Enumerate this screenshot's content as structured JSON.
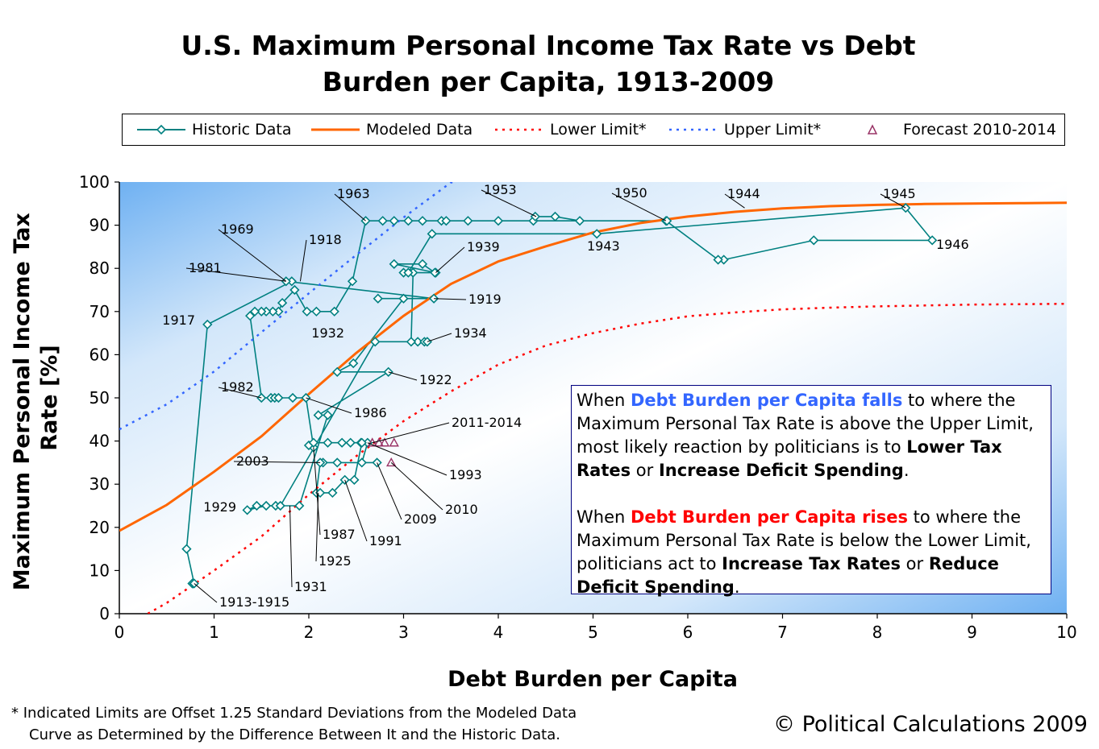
{
  "title_line1": "U.S. Maximum Personal Income Tax Rate vs Debt",
  "title_line2": "Burden per Capita, 1913-2009",
  "legend": {
    "historic": "Historic Data",
    "modeled": "Modeled Data",
    "lower": "Lower Limit*",
    "upper": "Upper Limit*",
    "forecast": "Forecast 2010-2014"
  },
  "colors": {
    "historic": "#008080",
    "modeled": "#ff6600",
    "lower": "#ff0000",
    "upper": "#3366ff",
    "forecast": "#993366"
  },
  "annotation": {
    "p1_a": "When ",
    "p1_b": "Debt Burden per Capita falls",
    "p1_c": " to where the Maximum Personal Tax Rate is above the Upper Limit, most likely reaction by politicians is to ",
    "p1_d": "Lower Tax Rates",
    "p1_e": " or ",
    "p1_f": "Increase Deficit Spending",
    "p1_g": ".",
    "p2_a": "When ",
    "p2_b": "Debt Burden per Capita rises",
    "p2_c": " to where the Maximum Personal Tax Rate is below the Lower Limit, politicians act to ",
    "p2_d": "Increase Tax Rates",
    "p2_e": " or ",
    "p2_f": "Reduce Deficit Spending",
    "p2_g": "."
  },
  "footnote_line1": "* Indicated Limits are Offset 1.25 Standard Deviations from the Modeled Data",
  "footnote_line2": "Curve as Determined by the Difference Between It and the Historic Data.",
  "copyright": "© Political Calculations 2009",
  "chart_data": {
    "type": "line",
    "title": "U.S. Maximum Personal Income Tax Rate vs Debt Burden per Capita, 1913-2009",
    "xlabel": "Debt Burden per Capita",
    "ylabel": "Maximum Personal Income Tax Rate [%]",
    "xlim": [
      0,
      10
    ],
    "ylim": [
      0,
      100
    ],
    "xticks": [
      "0",
      "1",
      "2",
      "3",
      "4",
      "5",
      "6",
      "7",
      "8",
      "9",
      "10"
    ],
    "yticks": [
      "0",
      "10",
      "20",
      "30",
      "40",
      "50",
      "60",
      "70",
      "80",
      "90",
      "100"
    ],
    "legend_position": "top",
    "series": [
      {
        "name": "Historic Data",
        "style": "line-diamond",
        "points": [
          [
            0.78,
            7
          ],
          [
            0.77,
            7
          ],
          [
            0.79,
            7
          ],
          [
            0.71,
            15
          ],
          [
            0.93,
            67
          ],
          [
            1.82,
            77
          ],
          [
            1.76,
            77
          ],
          [
            3.32,
            73
          ],
          [
            2.73,
            73
          ],
          [
            3.0,
            73
          ],
          [
            2.47,
            58
          ],
          [
            2.3,
            56
          ],
          [
            2.84,
            56
          ],
          [
            2.1,
            46
          ],
          [
            2.2,
            46
          ],
          [
            1.9,
            25
          ],
          [
            1.65,
            25
          ],
          [
            1.55,
            25
          ],
          [
            1.35,
            24
          ],
          [
            1.45,
            25
          ],
          [
            1.7,
            25
          ],
          [
            2.7,
            63
          ],
          [
            3.15,
            63
          ],
          [
            3.22,
            63
          ],
          [
            3.25,
            63
          ],
          [
            3.08,
            63
          ],
          [
            3.1,
            79
          ],
          [
            3.0,
            79
          ],
          [
            3.34,
            79
          ],
          [
            2.9,
            81
          ],
          [
            3.2,
            81
          ],
          [
            3.33,
            79
          ],
          [
            3.05,
            79
          ],
          [
            3.3,
            88
          ],
          [
            5.04,
            88
          ],
          [
            8.3,
            94
          ],
          [
            8.58,
            86.5
          ],
          [
            7.33,
            86.5
          ],
          [
            6.38,
            82
          ],
          [
            6.32,
            82
          ],
          [
            5.77,
            91
          ],
          [
            5.78,
            91
          ],
          [
            4.37,
            91
          ],
          [
            4.39,
            92
          ],
          [
            4.6,
            92
          ],
          [
            4.86,
            91
          ],
          [
            4.0,
            91
          ],
          [
            3.68,
            91
          ],
          [
            3.4,
            91
          ],
          [
            3.45,
            91
          ],
          [
            3.2,
            91
          ],
          [
            3.05,
            91
          ],
          [
            2.9,
            91
          ],
          [
            2.78,
            91
          ],
          [
            2.6,
            91
          ],
          [
            2.46,
            77
          ],
          [
            2.27,
            70
          ],
          [
            2.08,
            70
          ],
          [
            1.98,
            70
          ],
          [
            1.85,
            75
          ],
          [
            1.72,
            72
          ],
          [
            1.68,
            70
          ],
          [
            1.62,
            70
          ],
          [
            1.55,
            70
          ],
          [
            1.5,
            70
          ],
          [
            1.43,
            70
          ],
          [
            1.38,
            69
          ],
          [
            1.5,
            50
          ],
          [
            1.6,
            50
          ],
          [
            1.64,
            50
          ],
          [
            1.68,
            50
          ],
          [
            1.83,
            50
          ],
          [
            1.97,
            50
          ],
          [
            2.05,
            38.5
          ],
          [
            2.0,
            39
          ],
          [
            2.05,
            39.6
          ],
          [
            2.2,
            39.6
          ],
          [
            2.35,
            39.6
          ],
          [
            2.44,
            39.6
          ],
          [
            2.55,
            39.6
          ],
          [
            2.62,
            39.6
          ],
          [
            2.56,
            35
          ],
          [
            2.72,
            35
          ],
          [
            2.3,
            35
          ],
          [
            2.15,
            35
          ],
          [
            2.12,
            35
          ],
          [
            2.08,
            28
          ],
          [
            2.12,
            28
          ],
          [
            2.25,
            28
          ],
          [
            2.38,
            31
          ],
          [
            2.48,
            31
          ],
          [
            2.56,
            39.6
          ]
        ]
      },
      {
        "name": "Modeled Data",
        "style": "line",
        "points": [
          [
            0,
            19.2
          ],
          [
            0.5,
            25.2
          ],
          [
            1,
            32.9
          ],
          [
            1.5,
            41.1
          ],
          [
            2,
            50.9
          ],
          [
            2.5,
            60.4
          ],
          [
            3,
            69.0
          ],
          [
            3.5,
            76.4
          ],
          [
            4,
            81.6
          ],
          [
            4.5,
            85.1
          ],
          [
            5,
            88.3
          ],
          [
            5.5,
            90.5
          ],
          [
            6,
            92.0
          ],
          [
            6.5,
            93.1
          ],
          [
            7,
            93.9
          ],
          [
            7.5,
            94.4
          ],
          [
            8,
            94.7
          ],
          [
            8.5,
            94.9
          ],
          [
            9,
            95.0
          ],
          [
            9.5,
            95.1
          ],
          [
            10,
            95.2
          ]
        ]
      },
      {
        "name": "Lower Limit*",
        "style": "dotted",
        "points": [
          [
            0.3,
            0
          ],
          [
            0.5,
            2.5
          ],
          [
            1,
            10.0
          ],
          [
            1.5,
            17.9
          ],
          [
            2,
            27.6
          ],
          [
            2.5,
            36.5
          ],
          [
            3,
            44.6
          ],
          [
            3.5,
            51.5
          ],
          [
            4,
            57.7
          ],
          [
            4.5,
            62.1
          ],
          [
            5,
            65.0
          ],
          [
            5.5,
            67.2
          ],
          [
            6,
            68.9
          ],
          [
            6.5,
            69.8
          ],
          [
            7,
            70.5
          ],
          [
            7.5,
            70.9
          ],
          [
            8,
            71.2
          ],
          [
            8.5,
            71.4
          ],
          [
            9,
            71.6
          ],
          [
            9.5,
            71.7
          ],
          [
            10,
            71.8
          ]
        ]
      },
      {
        "name": "Upper Limit*",
        "style": "dotted",
        "points": [
          [
            0,
            42.7
          ],
          [
            0.5,
            48.5
          ],
          [
            1,
            56.1
          ],
          [
            1.5,
            65.2
          ],
          [
            2,
            74.2
          ],
          [
            2.5,
            83.1
          ],
          [
            3,
            91.8
          ],
          [
            3.5,
            99.9
          ],
          [
            3.55,
            100
          ]
        ]
      },
      {
        "name": "Forecast 2010-2014",
        "style": "triangle",
        "points": [
          [
            2.67,
            39.6
          ],
          [
            2.74,
            39.6
          ],
          [
            2.8,
            39.6
          ],
          [
            2.9,
            39.6
          ],
          [
            2.87,
            35
          ]
        ]
      }
    ],
    "annotations": [
      {
        "text": "1913-1915",
        "at": [
          0.79,
          7
        ]
      },
      {
        "text": "1917",
        "at": [
          0.93,
          67
        ]
      },
      {
        "text": "1918",
        "at": [
          1.91,
          77
        ]
      },
      {
        "text": "1919",
        "at": [
          3.32,
          73
        ]
      },
      {
        "text": "1922",
        "at": [
          2.84,
          56
        ]
      },
      {
        "text": "1925",
        "at": [
          2.1,
          28
        ]
      },
      {
        "text": "1929",
        "at": [
          1.35,
          24
        ]
      },
      {
        "text": "1931",
        "at": [
          1.8,
          25
        ]
      },
      {
        "text": "1932",
        "at": [
          2.5,
          63
        ]
      },
      {
        "text": "1934",
        "at": [
          3.25,
          63
        ]
      },
      {
        "text": "1939",
        "at": [
          3.34,
          79
        ]
      },
      {
        "text": "1943",
        "at": [
          5.04,
          88
        ]
      },
      {
        "text": "1944",
        "at": [
          6.6,
          94
        ]
      },
      {
        "text": "1945",
        "at": [
          8.3,
          94
        ]
      },
      {
        "text": "1946",
        "at": [
          8.58,
          86.5
        ]
      },
      {
        "text": "1950",
        "at": [
          5.77,
          91
        ]
      },
      {
        "text": "1953",
        "at": [
          4.4,
          92
        ]
      },
      {
        "text": "1963",
        "at": [
          2.6,
          91
        ]
      },
      {
        "text": "1969",
        "at": [
          1.76,
          77
        ]
      },
      {
        "text": "1981",
        "at": [
          1.76,
          77
        ]
      },
      {
        "text": "1982",
        "at": [
          1.5,
          50
        ]
      },
      {
        "text": "1986",
        "at": [
          1.97,
          50
        ]
      },
      {
        "text": "1987",
        "at": [
          2.05,
          38.5
        ]
      },
      {
        "text": "1991",
        "at": [
          2.38,
          31
        ]
      },
      {
        "text": "1993",
        "at": [
          2.62,
          39.6
        ]
      },
      {
        "text": "2003",
        "at": [
          2.12,
          35
        ]
      },
      {
        "text": "2009",
        "at": [
          2.72,
          35
        ]
      },
      {
        "text": "2010",
        "at": [
          2.87,
          35
        ]
      },
      {
        "text": "2011-2014",
        "at": [
          2.67,
          39.6
        ]
      }
    ]
  }
}
